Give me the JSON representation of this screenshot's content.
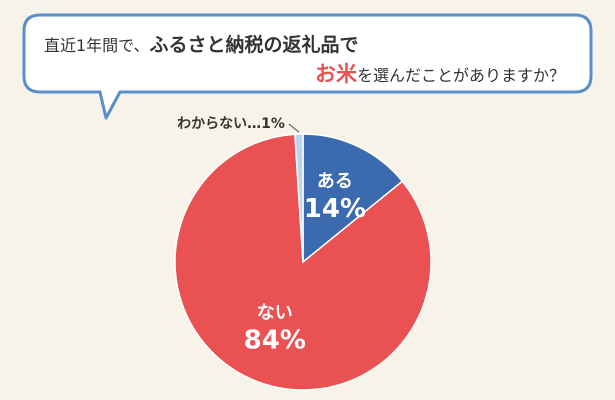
{
  "question": {
    "line1_plain": "直近1年間で、",
    "line1_bold": "ふるさと納税の返礼品で",
    "line2_accent": "お米",
    "line2_plain": "を選んだことがありますか？"
  },
  "chart_data": {
    "type": "pie",
    "title": "",
    "slices": [
      {
        "label": "ある",
        "value": 14,
        "value_text": "14%",
        "color": "#3c6aae"
      },
      {
        "label": "ない",
        "value": 84,
        "value_text": "84%",
        "color": "#e95152"
      },
      {
        "label": "わからない",
        "value": 1,
        "value_text": "1%",
        "color": "#bcd3ef",
        "callout_text": "わからない…1%"
      }
    ],
    "start_angle_deg": 0,
    "direction": "clockwise"
  },
  "colors": {
    "background": "#f7f3e8",
    "bubble_border": "#5a8fcc",
    "accent_red": "#e95152",
    "blue": "#3c6aae"
  }
}
